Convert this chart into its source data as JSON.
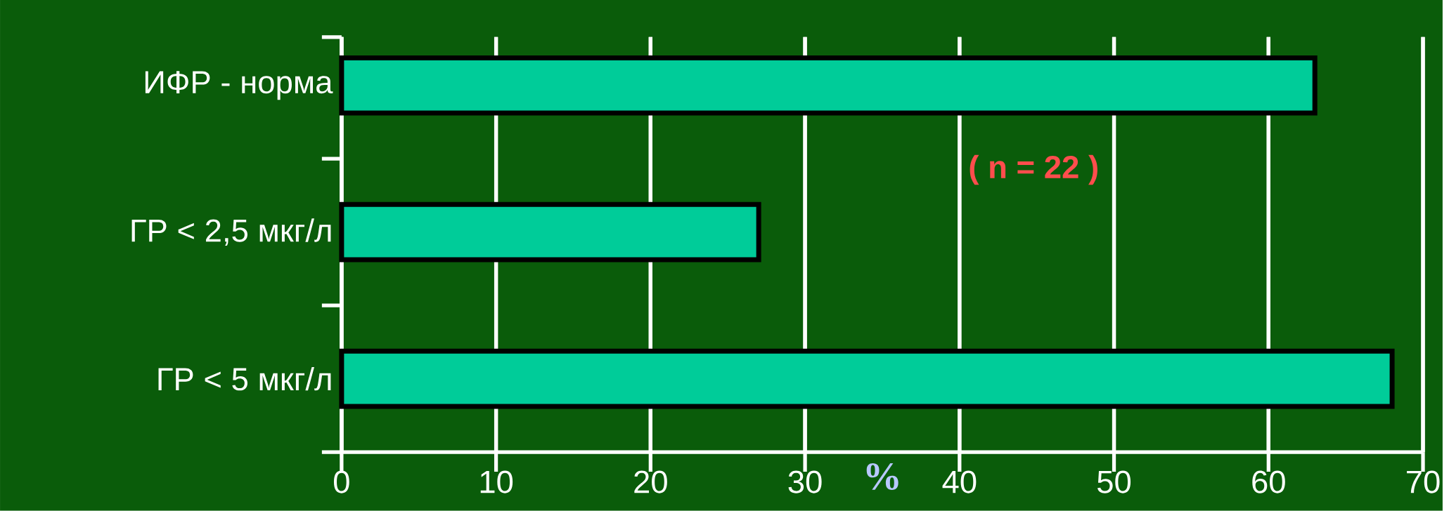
{
  "chart_data": {
    "type": "bar",
    "orientation": "horizontal",
    "categories": [
      "ИФР - норма",
      "ГР < 2,5 мкг/л",
      "ГР < 5 мкг/л"
    ],
    "values": [
      63,
      27,
      68
    ],
    "color": "#00cc99",
    "xlim": [
      0,
      70
    ],
    "xticks": [
      0,
      10,
      20,
      30,
      40,
      50,
      60,
      70
    ],
    "xlabel": "%",
    "grid": "x",
    "annotations": [
      "( n = 22 )"
    ]
  }
}
